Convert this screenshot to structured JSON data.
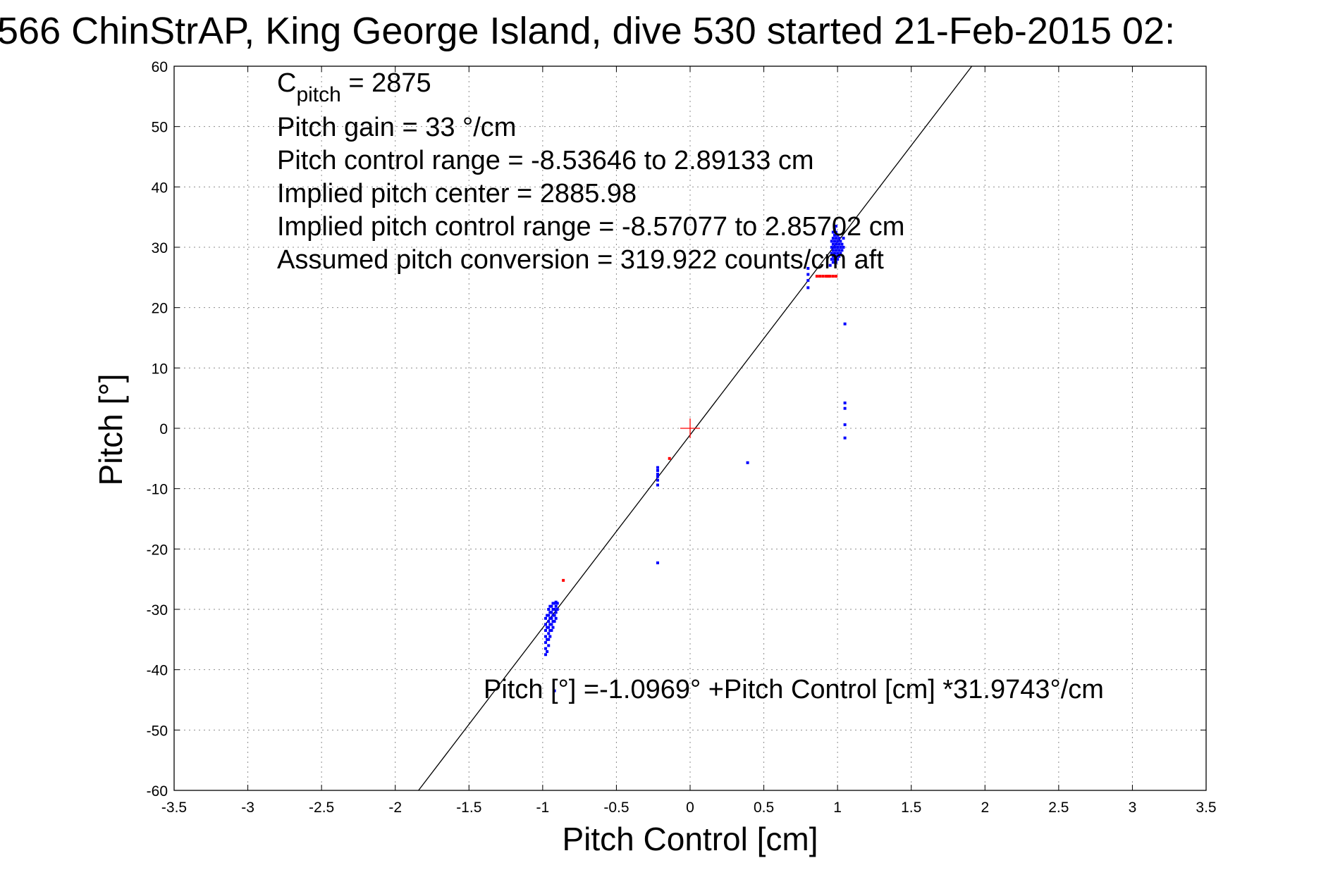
{
  "chart_data": {
    "type": "scatter",
    "title": "566 ChinStrAP, King George Island, dive 530 started 21-Feb-2015 02:",
    "xlabel": "Pitch Control [cm]",
    "ylabel": "Pitch [°]",
    "xlim": [
      -3.5,
      3.5
    ],
    "ylim": [
      -60,
      60
    ],
    "x_ticks": [
      -3.5,
      -3,
      -2.5,
      -2,
      -1.5,
      -1,
      -0.5,
      0,
      0.5,
      1,
      1.5,
      2,
      2.5,
      3,
      3.5
    ],
    "y_ticks": [
      60,
      50,
      40,
      30,
      20,
      10,
      0,
      -10,
      -20,
      -30,
      -40,
      -50,
      -60
    ],
    "grid": true,
    "annotations": {
      "c_pitch_symbol": "C",
      "c_pitch_subscript": "pitch",
      "c_pitch_value": " = 2875",
      "pitch_gain": "Pitch gain = 33 °/cm",
      "pitch_control_range": "Pitch control range = -8.53646 to 2.89133 cm",
      "implied_pitch_center": "Implied pitch center = 2885.98",
      "implied_pitch_control_range": "Implied pitch control range = -8.57077 to 2.85702 cm",
      "assumed_pitch_conversion": "Assumed pitch conversion = 319.922 counts/cm aft",
      "fit_equation": "Pitch [°] =-1.0969° +Pitch Control [cm] *31.9743°/cm"
    },
    "fit_line": {
      "intercept": -1.0969,
      "slope": 31.9743,
      "color": "#000000"
    },
    "center_marker": {
      "x": 0,
      "y": 0,
      "color": "#ff0000"
    },
    "series": [
      {
        "color": "#0000ff",
        "points": [
          [
            -0.98,
            -31.5
          ],
          [
            -0.98,
            -32.5
          ],
          [
            -0.98,
            -33.5
          ],
          [
            -0.98,
            -34.5
          ],
          [
            -0.98,
            -35.5
          ],
          [
            -0.98,
            -36.5
          ],
          [
            -0.98,
            -37.5
          ],
          [
            -0.97,
            -31
          ],
          [
            -0.97,
            -33
          ],
          [
            -0.97,
            -35
          ],
          [
            -0.97,
            -37
          ],
          [
            -0.96,
            -30
          ],
          [
            -0.96,
            -31
          ],
          [
            -0.96,
            -32
          ],
          [
            -0.96,
            -33
          ],
          [
            -0.96,
            -34
          ],
          [
            -0.96,
            -35
          ],
          [
            -0.96,
            -36
          ],
          [
            -0.95,
            -29.5
          ],
          [
            -0.95,
            -30.5
          ],
          [
            -0.95,
            -31.5
          ],
          [
            -0.95,
            -32.5
          ],
          [
            -0.95,
            -33.5
          ],
          [
            -0.95,
            -34.5
          ],
          [
            -0.94,
            -29.5
          ],
          [
            -0.94,
            -30.5
          ],
          [
            -0.94,
            -31.5
          ],
          [
            -0.94,
            -32.5
          ],
          [
            -0.94,
            -33.5
          ],
          [
            -0.93,
            -29
          ],
          [
            -0.93,
            -30
          ],
          [
            -0.93,
            -31
          ],
          [
            -0.93,
            -32
          ],
          [
            -0.93,
            -33
          ],
          [
            -0.92,
            -29
          ],
          [
            -0.92,
            -30
          ],
          [
            -0.92,
            -31
          ],
          [
            -0.92,
            -32
          ],
          [
            -0.91,
            -28.8
          ],
          [
            -0.91,
            -29.5
          ],
          [
            -0.91,
            -30.5
          ],
          [
            -0.91,
            -31.5
          ],
          [
            -0.9,
            -29
          ],
          [
            -0.9,
            -30
          ],
          [
            -0.92,
            -43.5
          ],
          [
            -0.22,
            -6.5
          ],
          [
            -0.22,
            -7
          ],
          [
            -0.22,
            -7.6
          ],
          [
            -0.22,
            -8
          ],
          [
            -0.22,
            -8.6
          ],
          [
            -0.22,
            -9.4
          ],
          [
            -0.22,
            -22.3
          ],
          [
            0.39,
            -5.7
          ],
          [
            0.8,
            26.5
          ],
          [
            0.8,
            25.5
          ],
          [
            0.8,
            24.5
          ],
          [
            0.8,
            23.3
          ],
          [
            0.95,
            27
          ],
          [
            0.96,
            28
          ],
          [
            0.96,
            29
          ],
          [
            0.96,
            30
          ],
          [
            0.96,
            31
          ],
          [
            0.97,
            27.5
          ],
          [
            0.97,
            28.5
          ],
          [
            0.97,
            29.5
          ],
          [
            0.97,
            30.5
          ],
          [
            0.97,
            31.5
          ],
          [
            0.97,
            32.5
          ],
          [
            0.98,
            28
          ],
          [
            0.98,
            29
          ],
          [
            0.98,
            30
          ],
          [
            0.98,
            31
          ],
          [
            0.98,
            32
          ],
          [
            0.98,
            33
          ],
          [
            0.99,
            27.5
          ],
          [
            0.99,
            28.5
          ],
          [
            0.99,
            29.5
          ],
          [
            0.99,
            30.5
          ],
          [
            0.99,
            31.5
          ],
          [
            0.99,
            32.5
          ],
          [
            0.99,
            33.5
          ],
          [
            1.0,
            28
          ],
          [
            1.0,
            29
          ],
          [
            1.0,
            30
          ],
          [
            1.0,
            31
          ],
          [
            1.0,
            32
          ],
          [
            1.01,
            28.5
          ],
          [
            1.01,
            29.5
          ],
          [
            1.01,
            30.5
          ],
          [
            1.01,
            31.5
          ],
          [
            1.02,
            29
          ],
          [
            1.02,
            30
          ],
          [
            1.02,
            31
          ],
          [
            1.03,
            29.5
          ],
          [
            1.03,
            30.5
          ],
          [
            1.04,
            30
          ],
          [
            1.04,
            31.5
          ],
          [
            1.05,
            17.3
          ],
          [
            1.05,
            4.2
          ],
          [
            1.05,
            3.3
          ],
          [
            1.05,
            0.6
          ],
          [
            1.05,
            -1.6
          ]
        ]
      },
      {
        "color": "#ff0000",
        "points": [
          [
            -0.86,
            -25.2
          ],
          [
            -0.14,
            -5
          ],
          [
            0.86,
            25.2
          ],
          [
            0.88,
            25.2
          ],
          [
            0.9,
            25.2
          ],
          [
            0.92,
            25.2
          ],
          [
            0.93,
            25.2
          ],
          [
            0.94,
            25.2
          ],
          [
            0.95,
            25.2
          ],
          [
            0.97,
            25.2
          ],
          [
            0.99,
            25.2
          ]
        ]
      }
    ]
  }
}
